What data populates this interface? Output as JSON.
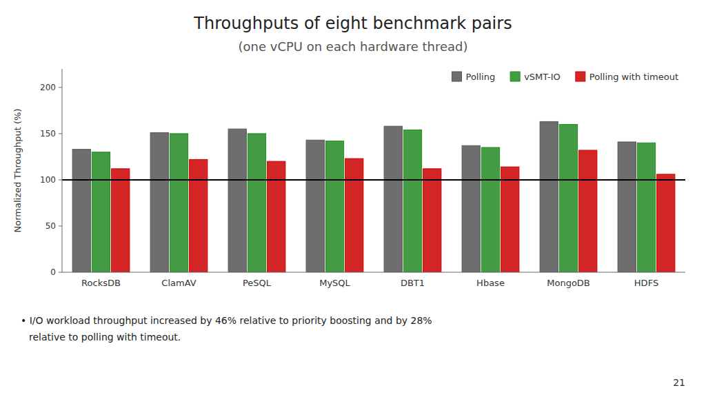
{
  "chart_data": {
    "type": "bar",
    "title": "Throughputs of eight benchmark pairs",
    "subtitle": "(one vCPU on each hardware thread)",
    "categories": [
      "RocksDB",
      "ClamAV",
      "PeSQL",
      "MySQL",
      "DBT1",
      "Hbase",
      "MongoDB",
      "HDFS"
    ],
    "series": [
      {
        "name": "Polling",
        "color": "#555555",
        "values": [
          133,
          151,
          155,
          143,
          158,
          137,
          163,
          141
        ]
      },
      {
        "name": "vSMT-IO",
        "color": "#228B22",
        "values": [
          130,
          150,
          150,
          142,
          154,
          135,
          160,
          140
        ]
      },
      {
        "name": "Polling with timeout",
        "color": "#cc0000",
        "values": [
          112,
          122,
          120,
          123,
          112,
          114,
          132,
          106
        ]
      }
    ],
    "ylabel": "Normalized Throughput (%)",
    "ylim": [
      0,
      220
    ],
    "yticks": [
      0,
      50,
      100,
      150,
      200
    ],
    "reference_line": 100,
    "legend": "upper right",
    "grid": false,
    "annotations": [
      "• I/O workload throughput increased by 46% relative to priority boosting and by 28%",
      "relative to polling with timeout.",
      "21"
    ]
  }
}
